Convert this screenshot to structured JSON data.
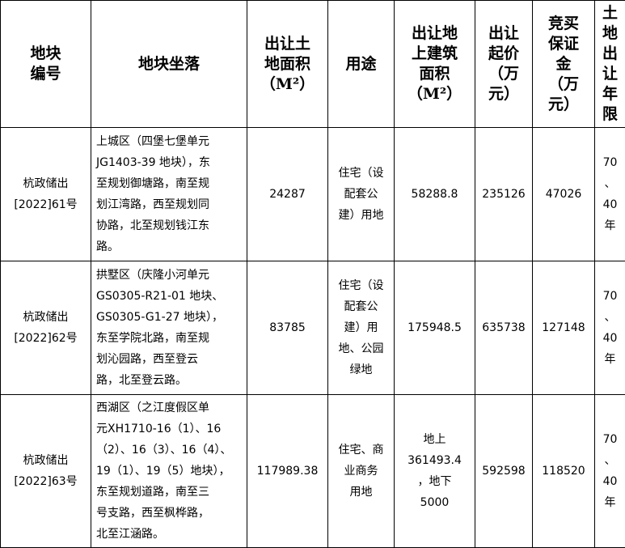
{
  "headers": [
    "地块\n编号",
    "地块坐落",
    "出让土\n地面积\n（M²）",
    "用途",
    "出让地\n上建筑\n面积\n（M²）",
    "出让\n起价\n（万\n元）",
    "竞买\n保证\n金\n（万\n元）",
    "土\n地\n出\n让\n年\n限"
  ],
  "rows": [
    {
      "id": "杭政储出\n[2022]61号",
      "location": "上城区（四堡七堡单元\nJG1403-39 地块），东\n至规划御塘路，南至规\n划江湾路，西至规划同\n协路，北至规划钱江东\n路。",
      "area": "24287",
      "use": "住宅（设\n配套公\n建）用地",
      "building_area": "58288.8",
      "start_price": "235126",
      "deposit": "47026",
      "term": "70\n、\n40\n年"
    },
    {
      "id": "杭政储出\n[2022]62号",
      "location": "拱墅区（庆隆小河单元\nGS0305-R21-01 地块、\nGS0305-G1-27 地块），\n东至学院北路，南至规\n划沁园路，西至登云\n路，北至登云路。",
      "area": "83785",
      "use": "住宅（设\n配套公\n建）用\n地、公园\n绿地",
      "building_area": "175948.5",
      "start_price": "635738",
      "deposit": "127148",
      "term": "70\n、\n40\n年"
    },
    {
      "id": "杭政储出\n[2022]63号",
      "location": "西湖区（之江度假区单\n元XH1710-16（1）、16\n（2）、16（3）、16（4）、\n19（1）、19（5）地块），\n东至规划道路，南至三\n号支路，西至枫桦路，\n北至江涵路。",
      "area": "117989.38",
      "use": "住宅、商\n业商务\n用地",
      "building_area": "地上\n361493.4\n，地下\n5000",
      "start_price": "592598",
      "deposit": "118520",
      "term": "70\n、\n40\n年"
    }
  ]
}
